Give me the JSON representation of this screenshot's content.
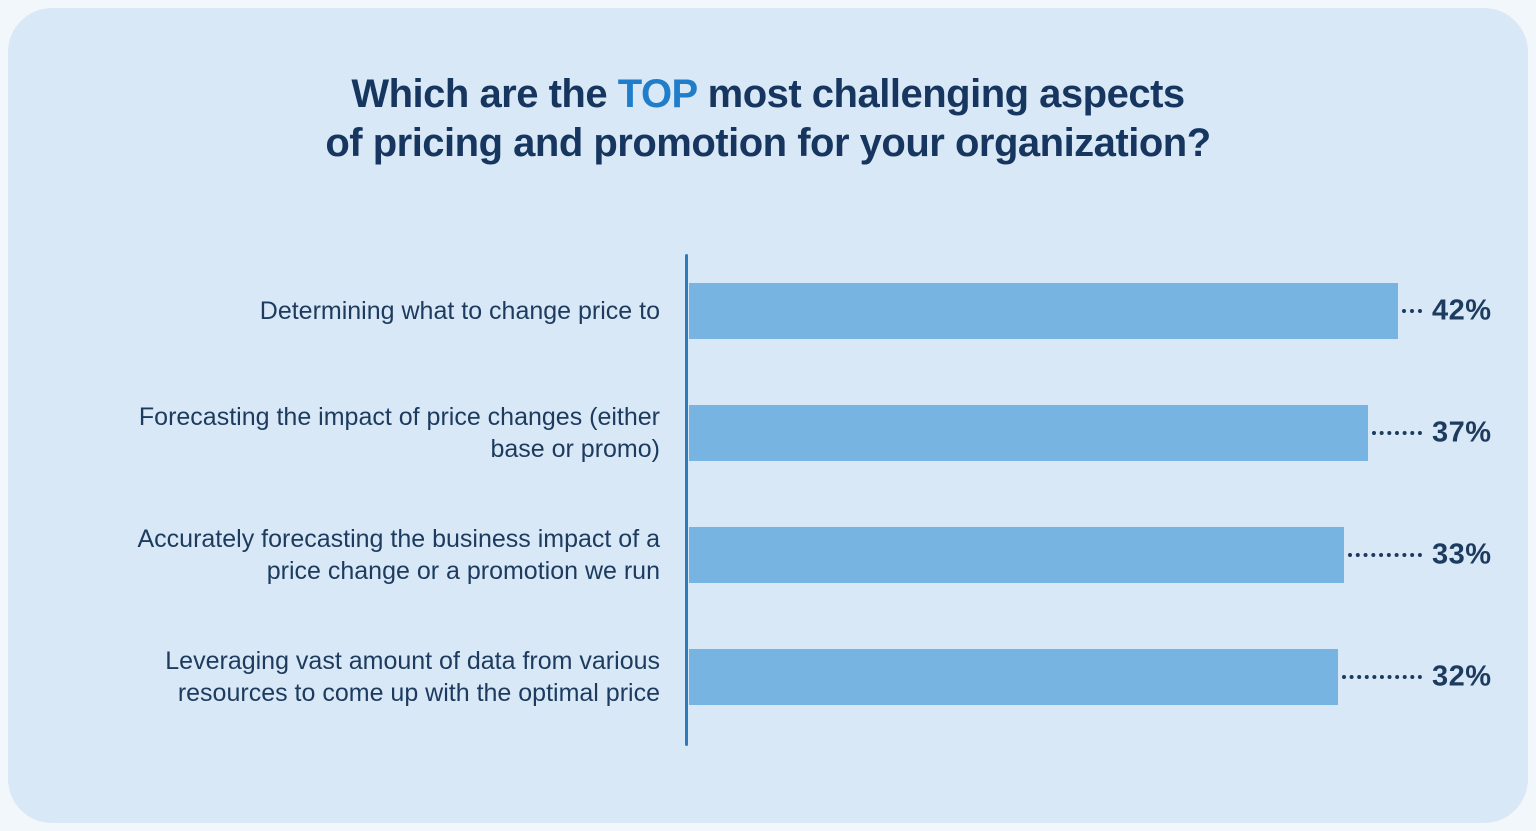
{
  "title": {
    "line1_prefix": "Which are the ",
    "line1_highlight": "TOP",
    "line1_suffix": " most challenging aspects",
    "line2": "of pricing and promotion for your organization?"
  },
  "colors": {
    "outer_background": "#f2f7fc",
    "card_background": "#d9e8f6",
    "bar_fill": "#77b4e2",
    "axis_line": "#2e7abd",
    "text_navy": "#1c3b5e",
    "title_highlight": "#1f7dca"
  },
  "chart_data": {
    "type": "bar",
    "orientation": "horizontal",
    "title": "Which are the TOP most challenging aspects of pricing and promotion for your organization?",
    "categories": [
      "Determining what to change price to",
      "Forecasting the impact of price changes (either base or promo)",
      "Accurately forecasting the business impact of a price change or a promotion we run",
      "Leveraging vast amount of data from various resources to come up with the optimal price"
    ],
    "values": [
      42,
      37,
      33,
      32
    ],
    "value_labels": [
      "42%",
      "37%",
      "33%",
      "32%"
    ],
    "xlabel": "",
    "ylabel": "",
    "xlim": [
      0,
      45
    ],
    "grid": false,
    "legend": false,
    "value_label_position": "right-of-bar-with-dotted-leader"
  }
}
